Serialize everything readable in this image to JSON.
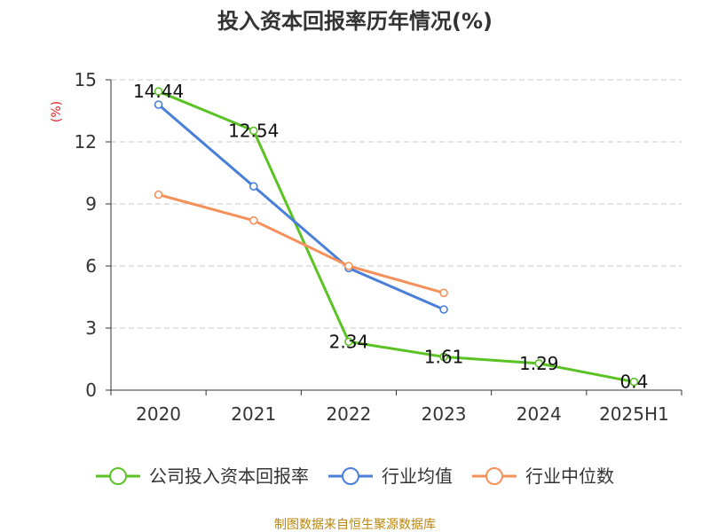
{
  "chart_data": {
    "type": "line",
    "title": "投入资本回报率历年情况(%)",
    "ylabel": "(%)",
    "xlabel": "",
    "categories": [
      "2020",
      "2021",
      "2022",
      "2023",
      "2024",
      "2025H1"
    ],
    "ylim": [
      0,
      15
    ],
    "yticks": [
      0,
      3,
      6,
      9,
      12,
      15
    ],
    "grid": true,
    "legend_position": "bottom",
    "series": [
      {
        "name": "公司投入资本回报率",
        "color": "#5bc224",
        "values": [
          14.44,
          12.54,
          2.34,
          1.61,
          1.29,
          0.4
        ],
        "labels": [
          "14.44",
          "12.54",
          "2.34",
          "1.61",
          "1.29",
          "0.4"
        ]
      },
      {
        "name": "行业均值",
        "color": "#4a7fd9",
        "values": [
          13.8,
          9.85,
          5.9,
          3.9,
          null,
          null
        ]
      },
      {
        "name": "行业中位数",
        "color": "#f5905a",
        "values": [
          9.45,
          8.2,
          6.0,
          4.7,
          null,
          null
        ]
      }
    ],
    "source": "制图数据来自恒生聚源数据库"
  }
}
